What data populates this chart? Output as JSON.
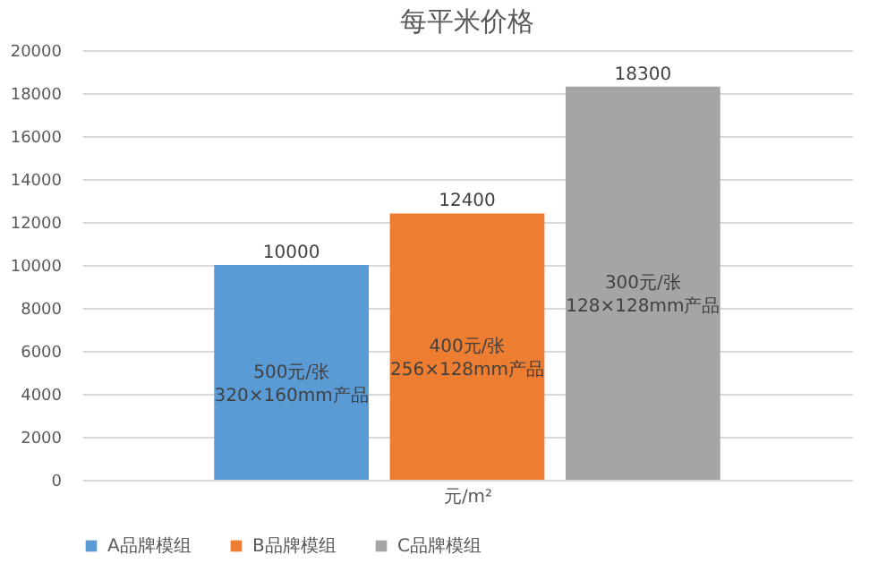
{
  "chart_data": {
    "type": "bar",
    "title": "每平米价格",
    "xlabel": "元/m²",
    "categories": [
      null
    ],
    "series": [
      {
        "name": "A品牌模组",
        "color": "#5b9bd5",
        "values": [
          10000
        ]
      },
      {
        "name": "B品牌模组",
        "color": "#ed7d31",
        "values": [
          12400
        ]
      },
      {
        "name": "C品牌模组",
        "color": "#a5a5a5",
        "values": [
          18300
        ]
      }
    ],
    "annotations": [
      "500元/张\n320×160mm产品",
      "400元/张\n256×128mm产品",
      "300元/张\n128×128mm产品"
    ],
    "ylim": [
      0,
      20000
    ],
    "yticks": [
      0,
      2000,
      4000,
      6000,
      8000,
      10000,
      12000,
      14000,
      16000,
      18000,
      20000
    ],
    "grid": "y",
    "legend": "bottom",
    "data_labels": true,
    "tick_labels": "y"
  }
}
